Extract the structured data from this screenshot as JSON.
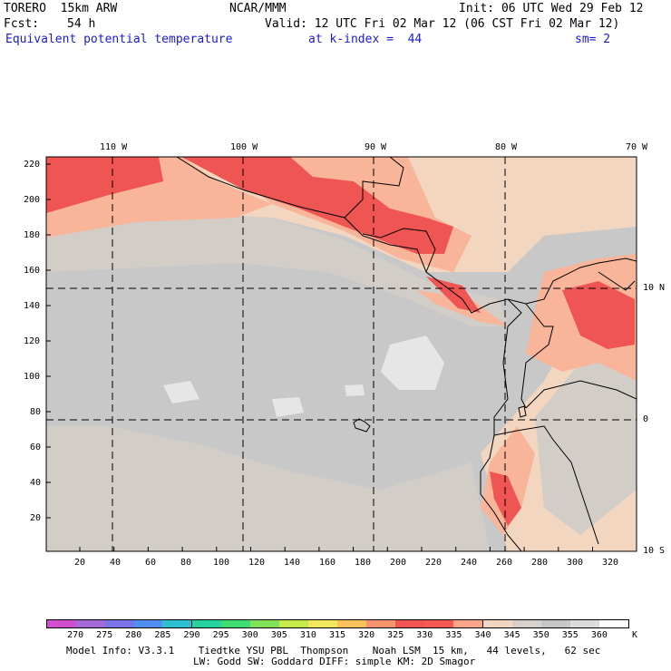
{
  "header": {
    "model": "TORERO  15km ARW",
    "org": "NCAR/MMM",
    "init": "Init: 06 UTC Wed 29 Feb 12",
    "fcst_label": "Fcst:",
    "fcst_value": "54 h",
    "valid": "Valid: 12 UTC Fri 02 Mar 12 (06 CST Fri 02 Mar 12)",
    "field": "Equivalent potential temperature",
    "level": "at k-index =  44",
    "smooth": "sm= 2"
  },
  "map": {
    "top_lon_labels": [
      "110 W",
      "100 W",
      "90 W",
      "80 W",
      "70 W"
    ],
    "right_lat_labels": [
      "10 N",
      "0",
      "10 S"
    ],
    "left_ticks": [
      "220",
      "200",
      "180",
      "160",
      "140",
      "120",
      "100",
      "80",
      "60",
      "40",
      "20"
    ],
    "bottom_ticks": [
      "20",
      "40",
      "60",
      "80",
      "100",
      "120",
      "140",
      "160",
      "180",
      "200",
      "220",
      "240",
      "260",
      "280",
      "300",
      "320"
    ]
  },
  "colorbar": {
    "unit": "K",
    "labels": [
      "270",
      "275",
      "280",
      "285",
      "290",
      "295",
      "300",
      "305",
      "310",
      "315",
      "320",
      "325",
      "330",
      "335",
      "340",
      "345",
      "350",
      "355",
      "360"
    ],
    "colors": [
      "#d14fcf",
      "#a46ad8",
      "#7a74e6",
      "#4f8ef0",
      "#2fbfcf",
      "#27d2a0",
      "#3fdc6f",
      "#7fe35a",
      "#c3ea4a",
      "#f0e75a",
      "#fbc15a",
      "#f6946b",
      "#ef5552",
      "#f35a4f",
      "#f9a589",
      "#f2d6c0",
      "#d7d1cb",
      "#c7c7c7",
      "#dcdcdc",
      "#ffffff"
    ]
  },
  "model_info": {
    "line1": "Model Info: V3.3.1    Tiedtke YSU PBL  Thompson    Noah LSM  15 km,   44 levels,   62 sec",
    "line2": "LW: Godd SW: Goddard DIFF: simple KM: 2D Smagor"
  }
}
